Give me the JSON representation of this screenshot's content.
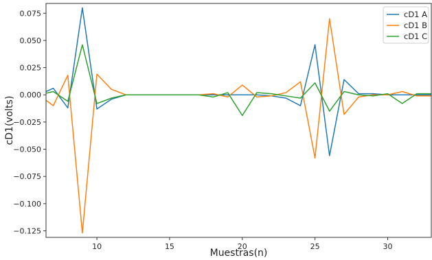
{
  "chart_data": {
    "type": "line",
    "title": "",
    "xlabel": "Muestras(n)",
    "ylabel": "cD1(volts)",
    "xlim": [
      6.5,
      33
    ],
    "ylim": [
      -0.131,
      0.084
    ],
    "x_ticks": [
      10,
      15,
      20,
      25,
      30
    ],
    "y_ticks": [
      0.075,
      0.05,
      0.025,
      0.0,
      -0.025,
      -0.05,
      -0.075,
      -0.1,
      -0.125
    ],
    "y_tick_labels": [
      "0.075",
      "0.050",
      "0.025",
      "0.000",
      "−0.025",
      "−0.050",
      "−0.075",
      "−0.100",
      "−0.125"
    ],
    "grid": false,
    "legend_position": "top-right",
    "x": [
      6,
      7,
      8,
      9,
      10,
      11,
      12,
      13,
      14,
      15,
      16,
      17,
      18,
      19,
      20,
      21,
      22,
      23,
      24,
      25,
      26,
      27,
      28,
      29,
      30,
      31,
      32,
      33
    ],
    "series": [
      {
        "name": "cD1 A",
        "color": "#1f77b4",
        "values": [
          0.0,
          0.006,
          -0.012,
          0.08,
          -0.013,
          -0.004,
          0.0,
          0.0,
          0.0,
          0.0,
          0.0,
          0.0,
          0.0,
          0.0,
          0.0,
          0.0,
          -0.001,
          -0.003,
          -0.01,
          0.046,
          -0.056,
          0.014,
          0.001,
          0.001,
          0.0,
          0.0,
          0.0,
          0.0
        ]
      },
      {
        "name": "cD1 B",
        "color": "#ff7f0e",
        "values": [
          0.0,
          -0.01,
          0.018,
          -0.127,
          0.019,
          0.005,
          0.0,
          0.0,
          0.0,
          0.0,
          0.0,
          0.0,
          0.001,
          -0.002,
          0.009,
          -0.002,
          -0.001,
          0.002,
          0.012,
          -0.058,
          0.07,
          -0.018,
          -0.002,
          0.0,
          0.0,
          0.003,
          -0.001,
          -0.001
        ]
      },
      {
        "name": "cD1 C",
        "color": "#2ca02c",
        "values": [
          0.0,
          0.003,
          -0.006,
          0.046,
          -0.008,
          -0.003,
          0.0,
          0.0,
          0.0,
          0.0,
          0.0,
          0.0,
          -0.002,
          0.002,
          -0.019,
          0.002,
          0.001,
          -0.001,
          -0.003,
          0.011,
          -0.015,
          0.003,
          0.0,
          -0.001,
          0.001,
          -0.008,
          0.001,
          0.001
        ]
      }
    ]
  }
}
